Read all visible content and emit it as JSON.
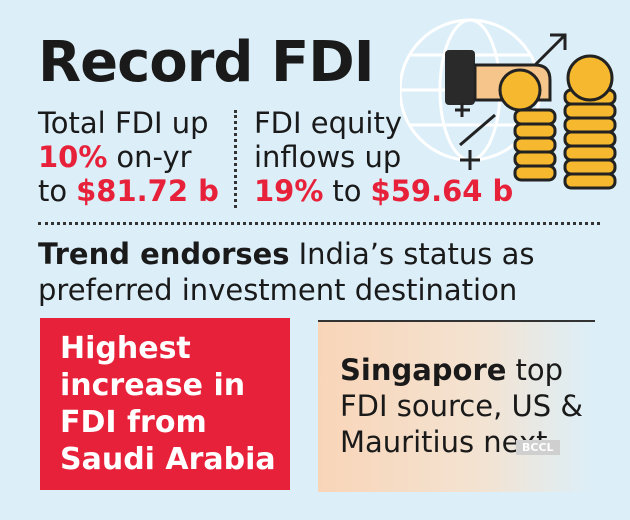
{
  "header": {
    "title": "Record FDI"
  },
  "stats": [
    {
      "line1": "Total FDI up",
      "highlight": "10%",
      "after_highlight": "on-yr",
      "prefix": "to",
      "amount": "$81.72 b"
    },
    {
      "line1": "FDI equity",
      "line2": "inflows up",
      "highlight": "19%",
      "prefix": "to",
      "amount": "$59.64 b"
    }
  ],
  "trend": {
    "bold": "Trend endorses",
    "line1_rest": "India’s status as",
    "line2": "preferred investment destination"
  },
  "boxes": [
    {
      "lines": [
        "Highest",
        "increase in",
        "FDI from",
        "Saudi Arabia"
      ]
    },
    {
      "bold": "Singapore",
      "line1_rest": "top",
      "lines": [
        "FDI source, US &",
        "Mauritius next"
      ]
    }
  ],
  "watermark": "BCCL"
}
